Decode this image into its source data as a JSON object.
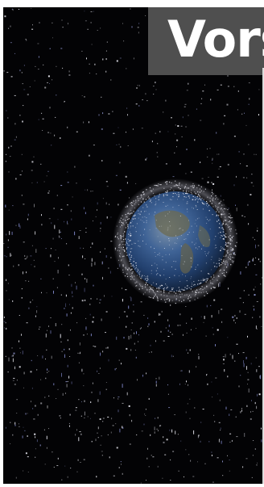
{
  "headline": {
    "text": "Vors"
  },
  "scene": {
    "subject": "earth-with-debris-cloud",
    "colors": {
      "space": "#030305",
      "ocean": "#2a4f86",
      "land": "#6b6a52",
      "debris": "#e6e6ee",
      "title_box": "#4f4f4f",
      "title_text": "#ffffff"
    }
  }
}
